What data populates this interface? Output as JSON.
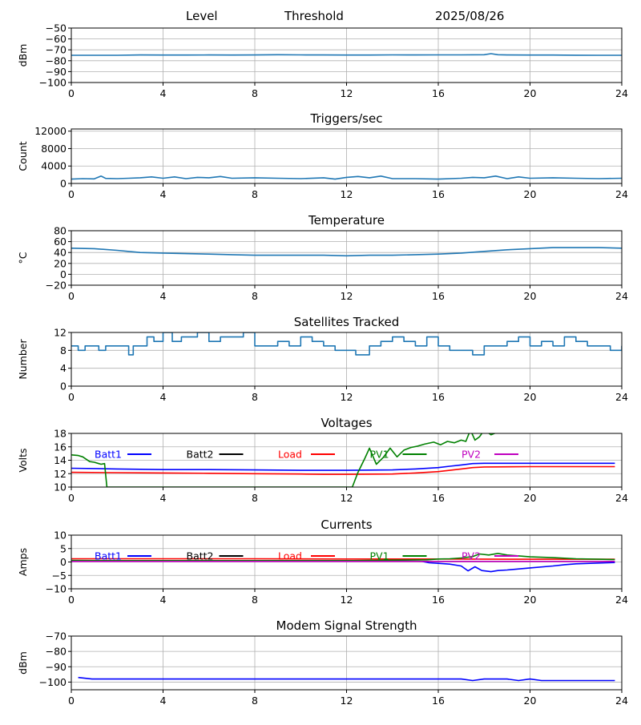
{
  "header": {
    "level_label": "Level",
    "threshold_label": "Threshold",
    "date": "2025/08/26"
  },
  "colors": {
    "default_series": "#1f77b4",
    "batt1": "#0000ff",
    "batt2": "#000000",
    "load": "#ff0000",
    "pv1": "#008000",
    "pv2": "#bf00bf",
    "grid": "#b0b0b0"
  },
  "chart_data": [
    {
      "type": "line",
      "title": "",
      "ylabel": "dBm",
      "xlim": [
        0,
        24
      ],
      "ylim": [
        -100,
        -50
      ],
      "xticks": [
        "0",
        "4",
        "8",
        "12",
        "16",
        "20",
        "24"
      ],
      "yticks": [
        "−100",
        "−90",
        "−80",
        "−70",
        "−60",
        "−50"
      ],
      "ytick_values": [
        -100,
        -90,
        -80,
        -70,
        -60,
        -50
      ],
      "grid": true,
      "series": [
        {
          "color": "#1f77b4",
          "x": [
            0,
            1,
            2,
            3,
            4,
            5,
            6,
            7,
            8,
            9,
            10,
            11,
            12,
            13,
            14,
            15,
            16,
            17,
            18,
            18.3,
            18.6,
            19,
            20,
            21,
            22,
            23,
            24
          ],
          "y": [
            -75,
            -75,
            -75,
            -74.7,
            -74.8,
            -74.8,
            -74.7,
            -74.8,
            -74.7,
            -74.5,
            -74.6,
            -74.7,
            -74.8,
            -74.8,
            -74.6,
            -74.7,
            -74.6,
            -74.6,
            -74.5,
            -73.5,
            -74.5,
            -74.7,
            -74.8,
            -74.8,
            -74.9,
            -75,
            -75
          ]
        }
      ]
    },
    {
      "type": "line",
      "title": "Triggers/sec",
      "ylabel": "Count",
      "xlim": [
        0,
        24
      ],
      "ylim": [
        0,
        12500
      ],
      "xticks": [
        "0",
        "4",
        "8",
        "12",
        "16",
        "20",
        "24"
      ],
      "yticks": [
        "0",
        "4000",
        "8000",
        "12000"
      ],
      "ytick_values": [
        0,
        4000,
        8000,
        12000
      ],
      "grid": true,
      "series": [
        {
          "color": "#1f77b4",
          "x": [
            0,
            0.5,
            1,
            1.3,
            1.5,
            2,
            2.5,
            3,
            3.5,
            4,
            4.5,
            5,
            5.5,
            6,
            6.5,
            7,
            8,
            9,
            10,
            11,
            11.5,
            12,
            12.5,
            13,
            13.5,
            14,
            15,
            16,
            17,
            17.5,
            18,
            18.5,
            19,
            19.5,
            20,
            21,
            22,
            23,
            24
          ],
          "y": [
            1000,
            1100,
            1050,
            1700,
            1150,
            1100,
            1200,
            1300,
            1500,
            1200,
            1500,
            1100,
            1400,
            1300,
            1600,
            1200,
            1300,
            1200,
            1100,
            1300,
            1000,
            1400,
            1600,
            1300,
            1700,
            1100,
            1100,
            1000,
            1200,
            1400,
            1300,
            1700,
            1100,
            1500,
            1200,
            1300,
            1200,
            1100,
            1200
          ]
        }
      ]
    },
    {
      "type": "line",
      "title": "Temperature",
      "ylabel": "°C",
      "xlim": [
        0,
        24
      ],
      "ylim": [
        -20,
        80
      ],
      "xticks": [
        "0",
        "4",
        "8",
        "12",
        "16",
        "20",
        "24"
      ],
      "yticks": [
        "−20",
        "0",
        "20",
        "40",
        "60",
        "80"
      ],
      "ytick_values": [
        -20,
        0,
        20,
        40,
        60,
        80
      ],
      "grid": true,
      "series": [
        {
          "color": "#1f77b4",
          "x": [
            0,
            1,
            2,
            3,
            4,
            5,
            6,
            7,
            8,
            9,
            10,
            11,
            12,
            13,
            14,
            15,
            16,
            17,
            18,
            19,
            20,
            21,
            22,
            23,
            24
          ],
          "y": [
            48,
            47,
            44,
            40,
            39,
            38,
            37,
            36,
            35,
            35,
            35,
            35,
            34,
            35,
            35,
            36,
            37,
            39,
            42,
            45,
            47,
            49,
            49,
            49,
            48
          ]
        }
      ]
    },
    {
      "type": "line",
      "title": "Satellites Tracked",
      "ylabel": "Number",
      "xlim": [
        0,
        24
      ],
      "ylim": [
        0,
        12
      ],
      "xticks": [
        "0",
        "4",
        "8",
        "12",
        "16",
        "20",
        "24"
      ],
      "yticks": [
        "0",
        "4",
        "8",
        "12"
      ],
      "ytick_values": [
        0,
        4,
        8,
        12
      ],
      "grid": true,
      "series": [
        {
          "color": "#1f77b4",
          "step": true,
          "x": [
            0,
            0.3,
            0.6,
            0.9,
            1.2,
            1.5,
            2,
            2.5,
            2.7,
            3,
            3.3,
            3.6,
            4,
            4.4,
            4.8,
            5.2,
            5.5,
            6,
            6.5,
            7,
            7.5,
            8,
            8.5,
            9,
            9.5,
            10,
            10.5,
            11,
            11.5,
            12,
            12.4,
            13,
            13.5,
            14,
            14.5,
            15,
            15.5,
            16,
            16.5,
            17,
            17.5,
            18,
            18.5,
            19,
            19.5,
            20,
            20.5,
            21,
            21.5,
            22,
            22.5,
            23,
            23.5,
            24
          ],
          "y": [
            9,
            8,
            9,
            9,
            8,
            9,
            9,
            7,
            9,
            9,
            11,
            10,
            12,
            10,
            11,
            11,
            12,
            10,
            11,
            11,
            12,
            9,
            9,
            10,
            9,
            11,
            10,
            9,
            8,
            8,
            7,
            9,
            10,
            11,
            10,
            9,
            11,
            9,
            8,
            8,
            7,
            9,
            9,
            10,
            11,
            9,
            10,
            9,
            11,
            10,
            9,
            9,
            8,
            9
          ]
        }
      ]
    },
    {
      "type": "line",
      "title": "Voltages",
      "ylabel": "Volts",
      "xlim": [
        0,
        24
      ],
      "ylim": [
        10,
        18
      ],
      "xticks": [
        "0",
        "4",
        "8",
        "12",
        "16",
        "20",
        "24"
      ],
      "yticks": [
        "10",
        "12",
        "14",
        "16",
        "18"
      ],
      "ytick_values": [
        10,
        12,
        14,
        16,
        18
      ],
      "grid": true,
      "legend": "top",
      "series": [
        {
          "name": "Batt1",
          "color": "#0000ff",
          "x": [
            0,
            2,
            4,
            6,
            8,
            10,
            12,
            14,
            15,
            16,
            16.5,
            17,
            17.5,
            18,
            20,
            22,
            23.7
          ],
          "y": [
            12.8,
            12.7,
            12.6,
            12.6,
            12.55,
            12.5,
            12.5,
            12.55,
            12.7,
            12.9,
            13.1,
            13.3,
            13.5,
            13.55,
            13.55,
            13.55,
            13.55
          ]
        },
        {
          "name": "Batt2",
          "color": "#000000",
          "x": [],
          "y": []
        },
        {
          "name": "Load",
          "color": "#ff0000",
          "x": [
            0,
            2,
            4,
            6,
            8,
            10,
            11,
            12,
            14,
            15,
            16,
            16.5,
            17,
            17.5,
            18,
            20,
            22,
            23.7
          ],
          "y": [
            12.2,
            12.15,
            12.1,
            12.05,
            12.0,
            11.95,
            11.9,
            11.9,
            11.95,
            12.1,
            12.3,
            12.5,
            12.7,
            12.9,
            13.0,
            13.05,
            13.05,
            13.05
          ]
        },
        {
          "name": "PV1",
          "color": "#008000",
          "x": [
            0,
            0.3,
            0.5,
            0.8,
            1.0,
            1.2,
            1.3,
            1.45,
            1.55,
            12.25,
            12.5,
            12.8,
            13.0,
            13.3,
            13.6,
            13.9,
            14.2,
            14.5,
            14.8,
            15.1,
            15.4,
            15.8,
            16.1,
            16.4,
            16.7,
            17.0,
            17.2,
            17.4,
            17.6,
            17.8,
            18.0,
            18.3,
            18.6
          ],
          "y": [
            14.8,
            14.7,
            14.5,
            13.8,
            13.7,
            13.5,
            13.4,
            13.5,
            10.0,
            10.0,
            12.2,
            14.3,
            15.8,
            13.4,
            14.4,
            15.8,
            14.5,
            15.5,
            15.9,
            16.1,
            16.4,
            16.7,
            16.3,
            16.8,
            16.6,
            17.0,
            16.8,
            18.5,
            17.0,
            17.5,
            18.5,
            17.8,
            18.2
          ]
        },
        {
          "name": "PV2",
          "color": "#bf00bf",
          "x": [],
          "y": []
        }
      ]
    },
    {
      "type": "line",
      "title": "Currents",
      "ylabel": "Amps",
      "xlim": [
        0,
        24
      ],
      "ylim": [
        -10,
        10
      ],
      "xticks": [
        "0",
        "4",
        "8",
        "12",
        "16",
        "20",
        "24"
      ],
      "yticks": [
        "−10",
        "−5",
        "0",
        "5",
        "10"
      ],
      "ytick_values": [
        -10,
        -5,
        0,
        5,
        10
      ],
      "grid": true,
      "legend": "top",
      "series": [
        {
          "name": "Batt1",
          "color": "#0000ff",
          "x": [
            0,
            2,
            4,
            6,
            8,
            10,
            12,
            14,
            15.3,
            15.6,
            16,
            16.5,
            17,
            17.3,
            17.6,
            17.9,
            18.3,
            18.6,
            19,
            20,
            21,
            21.5,
            22,
            23,
            23.7
          ],
          "y": [
            0.4,
            0.4,
            0.4,
            0.4,
            0.4,
            0.4,
            0.4,
            0.4,
            0.2,
            -0.3,
            -0.5,
            -0.8,
            -1.5,
            -3.3,
            -1.8,
            -3.2,
            -3.6,
            -3.2,
            -3.0,
            -2.2,
            -1.5,
            -1.0,
            -0.7,
            -0.4,
            -0.2
          ]
        },
        {
          "name": "Batt2",
          "color": "#000000",
          "x": [],
          "y": []
        },
        {
          "name": "Load",
          "color": "#ff0000",
          "x": [
            0,
            4,
            8,
            12,
            16,
            20,
            23.7
          ],
          "y": [
            1.2,
            1.2,
            1.2,
            1.1,
            1.1,
            1.0,
            1.0
          ]
        },
        {
          "name": "PV1",
          "color": "#008000",
          "x": [
            0,
            1.5,
            12.3,
            14,
            15.5,
            16,
            16.5,
            17,
            17.5,
            17.8,
            18.2,
            18.6,
            19,
            20,
            21,
            22,
            23,
            23.7
          ],
          "y": [
            0.6,
            0.5,
            0.5,
            0.7,
            0.8,
            1.1,
            1.2,
            1.5,
            2.0,
            3.0,
            2.6,
            3.2,
            2.6,
            1.9,
            1.6,
            1.2,
            1.0,
            0.9
          ]
        },
        {
          "name": "PV2",
          "color": "#bf00bf",
          "x": [
            0,
            4,
            8,
            12,
            16,
            20,
            23.7
          ],
          "y": [
            0.2,
            0.2,
            0.2,
            0.2,
            0.2,
            0.2,
            0.2
          ]
        }
      ]
    },
    {
      "type": "line",
      "title": "Modem Signal Strength",
      "ylabel": "dBm",
      "xlim": [
        0,
        24
      ],
      "ylim": [
        -105,
        -70
      ],
      "xticks": [
        "0",
        "4",
        "8",
        "12",
        "16",
        "20",
        "24"
      ],
      "yticks": [
        "−100",
        "−90",
        "−80",
        "−70"
      ],
      "ytick_values": [
        -100,
        -90,
        -80,
        -70
      ],
      "grid": true,
      "series": [
        {
          "color": "#0000ff",
          "x": [
            0.3,
            0.9,
            2,
            4,
            6,
            8,
            10,
            12,
            14,
            16,
            17,
            17.5,
            18,
            18.5,
            19,
            19.5,
            20,
            20.5,
            21,
            22,
            23,
            23.7
          ],
          "y": [
            -97,
            -98,
            -98,
            -98,
            -98,
            -98,
            -98,
            -98,
            -98,
            -98,
            -98,
            -99,
            -98,
            -98,
            -98,
            -99,
            -98,
            -99,
            -99,
            -99,
            -99,
            -99
          ]
        }
      ]
    }
  ]
}
